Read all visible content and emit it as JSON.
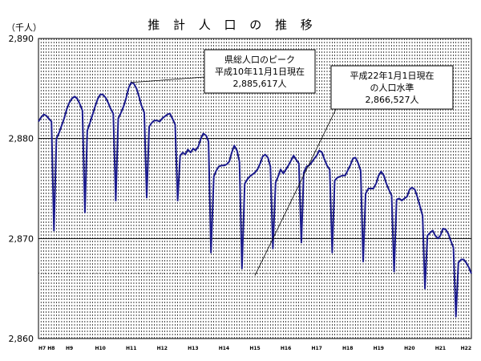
{
  "chart_data": {
    "type": "line",
    "title": "推 計 人 口 の 推 移",
    "unit_label": "（千人）",
    "ylim": [
      2860,
      2890
    ],
    "y_ticks": [
      "2,860",
      "2,870",
      "2,880",
      "2,890"
    ],
    "y_tick_values": [
      2860,
      2870,
      2880,
      2890
    ],
    "x_range": [
      1996.0,
      2010.0
    ],
    "x_tick_labels": [
      "H7 H8",
      "H9",
      "H10",
      "H11",
      "H12",
      "H13",
      "H14",
      "H15",
      "H16",
      "H17",
      "H18",
      "H19",
      "H20",
      "H21",
      "H22"
    ],
    "x_tick_values": [
      1996.0,
      1997.0,
      1998.0,
      1999.0,
      2000.0,
      2001.0,
      2002.0,
      2003.0,
      2004.0,
      2005.0,
      2006.0,
      2007.0,
      2008.0,
      2009.0,
      2010.0
    ],
    "grid": "dashed vertical lines monthly; solid horizontal lines at 2,870 and 2,880; dotted horizontal line at 2,866.5",
    "reference_line": 2866.527,
    "line_color": "#1a1a8c",
    "series": [
      {
        "values": [
          [
            1996.0,
            2881.7
          ],
          [
            1996.08,
            2882.1
          ],
          [
            1996.17,
            2882.4
          ],
          [
            1996.25,
            2882.3
          ],
          [
            1996.33,
            2882.0
          ],
          [
            1996.42,
            2881.7
          ],
          [
            1996.5,
            2870.8
          ],
          [
            1996.58,
            2880.0
          ],
          [
            1996.67,
            2880.6
          ],
          [
            1996.75,
            2881.3
          ],
          [
            1996.83,
            2882.0
          ],
          [
            1996.92,
            2883.0
          ],
          [
            1997.0,
            2883.6
          ],
          [
            1997.08,
            2884.0
          ],
          [
            1997.17,
            2884.2
          ],
          [
            1997.25,
            2884.0
          ],
          [
            1997.33,
            2883.5
          ],
          [
            1997.42,
            2882.8
          ],
          [
            1997.5,
            2872.6
          ],
          [
            1997.58,
            2880.8
          ],
          [
            1997.67,
            2881.6
          ],
          [
            1997.75,
            2882.4
          ],
          [
            1997.83,
            2883.2
          ],
          [
            1997.92,
            2884.0
          ],
          [
            1998.0,
            2884.4
          ],
          [
            1998.08,
            2884.4
          ],
          [
            1998.17,
            2884.1
          ],
          [
            1998.25,
            2883.6
          ],
          [
            1998.33,
            2883.0
          ],
          [
            1998.42,
            2882.5
          ],
          [
            1998.5,
            2873.8
          ],
          [
            1998.58,
            2882.0
          ],
          [
            1998.67,
            2882.6
          ],
          [
            1998.75,
            2883.2
          ],
          [
            1998.83,
            2884.0
          ],
          [
            1998.92,
            2885.1
          ],
          [
            1999.0,
            2885.6
          ],
          [
            1999.08,
            2885.5
          ],
          [
            1999.17,
            2885.0
          ],
          [
            1999.25,
            2884.2
          ],
          [
            1999.33,
            2883.3
          ],
          [
            1999.42,
            2882.6
          ],
          [
            1999.5,
            2874.1
          ],
          [
            1999.58,
            2881.2
          ],
          [
            1999.67,
            2881.6
          ],
          [
            1999.75,
            2881.8
          ],
          [
            1999.83,
            2881.8
          ],
          [
            1999.92,
            2881.7
          ],
          [
            2000.0,
            2882.0
          ],
          [
            2000.08,
            2882.2
          ],
          [
            2000.17,
            2882.4
          ],
          [
            2000.25,
            2882.5
          ],
          [
            2000.33,
            2882.0
          ],
          [
            2000.42,
            2881.4
          ],
          [
            2000.5,
            2873.8
          ],
          [
            2000.58,
            2878.3
          ],
          [
            2000.67,
            2878.6
          ],
          [
            2000.75,
            2878.4
          ],
          [
            2000.83,
            2878.9
          ],
          [
            2000.92,
            2878.6
          ],
          [
            2001.0,
            2879.0
          ],
          [
            2001.08,
            2878.8
          ],
          [
            2001.17,
            2879.2
          ],
          [
            2001.25,
            2880.0
          ],
          [
            2001.33,
            2880.5
          ],
          [
            2001.42,
            2880.3
          ],
          [
            2001.5,
            2879.7
          ],
          [
            2001.58,
            2868.6
          ],
          [
            2001.67,
            2876.2
          ],
          [
            2001.75,
            2876.8
          ],
          [
            2001.83,
            2877.2
          ],
          [
            2001.92,
            2877.3
          ],
          [
            2002.0,
            2877.3
          ],
          [
            2002.08,
            2877.4
          ],
          [
            2002.17,
            2877.7
          ],
          [
            2002.25,
            2878.6
          ],
          [
            2002.33,
            2879.3
          ],
          [
            2002.42,
            2878.8
          ],
          [
            2002.5,
            2877.7
          ],
          [
            2002.58,
            2867.0
          ],
          [
            2002.67,
            2875.5
          ],
          [
            2002.75,
            2875.9
          ],
          [
            2002.83,
            2876.2
          ],
          [
            2002.92,
            2876.4
          ],
          [
            2003.0,
            2876.6
          ],
          [
            2003.08,
            2876.9
          ],
          [
            2003.17,
            2877.5
          ],
          [
            2003.25,
            2878.2
          ],
          [
            2003.33,
            2878.4
          ],
          [
            2003.42,
            2878.1
          ],
          [
            2003.5,
            2877.2
          ],
          [
            2003.58,
            2869.0
          ],
          [
            2003.67,
            2875.6
          ],
          [
            2003.75,
            2876.2
          ],
          [
            2003.83,
            2876.9
          ],
          [
            2003.92,
            2876.5
          ],
          [
            2004.0,
            2876.9
          ],
          [
            2004.08,
            2877.3
          ],
          [
            2004.17,
            2877.8
          ],
          [
            2004.25,
            2878.3
          ],
          [
            2004.33,
            2877.9
          ],
          [
            2004.42,
            2877.5
          ],
          [
            2004.5,
            2869.6
          ],
          [
            2004.58,
            2876.6
          ],
          [
            2004.67,
            2877.2
          ],
          [
            2004.75,
            2877.3
          ],
          [
            2004.83,
            2877.6
          ],
          [
            2004.92,
            2878.0
          ],
          [
            2005.0,
            2878.3
          ],
          [
            2005.08,
            2878.8
          ],
          [
            2005.17,
            2878.6
          ],
          [
            2005.25,
            2877.9
          ],
          [
            2005.33,
            2877.3
          ],
          [
            2005.42,
            2876.9
          ],
          [
            2005.5,
            2868.6
          ],
          [
            2005.58,
            2875.8
          ],
          [
            2005.67,
            2876.1
          ],
          [
            2005.75,
            2876.2
          ],
          [
            2005.83,
            2876.3
          ],
          [
            2005.92,
            2876.3
          ],
          [
            2006.0,
            2876.8
          ],
          [
            2006.08,
            2877.3
          ],
          [
            2006.17,
            2878.0
          ],
          [
            2006.25,
            2878.1
          ],
          [
            2006.33,
            2877.6
          ],
          [
            2006.42,
            2876.8
          ],
          [
            2006.5,
            2867.7
          ],
          [
            2006.58,
            2874.5
          ],
          [
            2006.67,
            2875.0
          ],
          [
            2006.75,
            2875.0
          ],
          [
            2006.83,
            2875.0
          ],
          [
            2006.92,
            2875.5
          ],
          [
            2007.0,
            2876.3
          ],
          [
            2007.08,
            2876.7
          ],
          [
            2007.17,
            2876.3
          ],
          [
            2007.25,
            2875.5
          ],
          [
            2007.33,
            2874.9
          ],
          [
            2007.42,
            2874.3
          ],
          [
            2007.5,
            2866.7
          ],
          [
            2007.58,
            2873.9
          ],
          [
            2007.67,
            2874.0
          ],
          [
            2007.75,
            2873.8
          ],
          [
            2007.83,
            2874.0
          ],
          [
            2007.92,
            2874.2
          ],
          [
            2008.0,
            2874.9
          ],
          [
            2008.08,
            2875.1
          ],
          [
            2008.17,
            2874.9
          ],
          [
            2008.25,
            2874.2
          ],
          [
            2008.33,
            2873.3
          ],
          [
            2008.42,
            2872.3
          ],
          [
            2008.5,
            2865.0
          ],
          [
            2008.58,
            2870.3
          ],
          [
            2008.67,
            2870.6
          ],
          [
            2008.75,
            2870.8
          ],
          [
            2008.83,
            2870.3
          ],
          [
            2008.92,
            2870.0
          ],
          [
            2009.0,
            2870.3
          ],
          [
            2009.08,
            2871.0
          ],
          [
            2009.17,
            2870.9
          ],
          [
            2009.25,
            2870.5
          ],
          [
            2009.33,
            2869.8
          ],
          [
            2009.42,
            2869.1
          ],
          [
            2009.5,
            2862.2
          ],
          [
            2009.58,
            2867.6
          ],
          [
            2009.67,
            2867.9
          ],
          [
            2009.75,
            2867.9
          ],
          [
            2009.83,
            2867.6
          ],
          [
            2009.92,
            2867.1
          ],
          [
            2010.0,
            2866.5
          ]
        ]
      }
    ],
    "annotations": [
      {
        "lines": [
          "県総人口のピーク",
          "平成10年11月1日現在",
          "2,885,617人"
        ],
        "point": [
          1999.0,
          2885.6
        ]
      },
      {
        "lines": [
          "平成22年1月1日現在",
          "の人口水準",
          "2,866,527人"
        ],
        "point": [
          2003.0,
          2866.3
        ]
      }
    ]
  }
}
